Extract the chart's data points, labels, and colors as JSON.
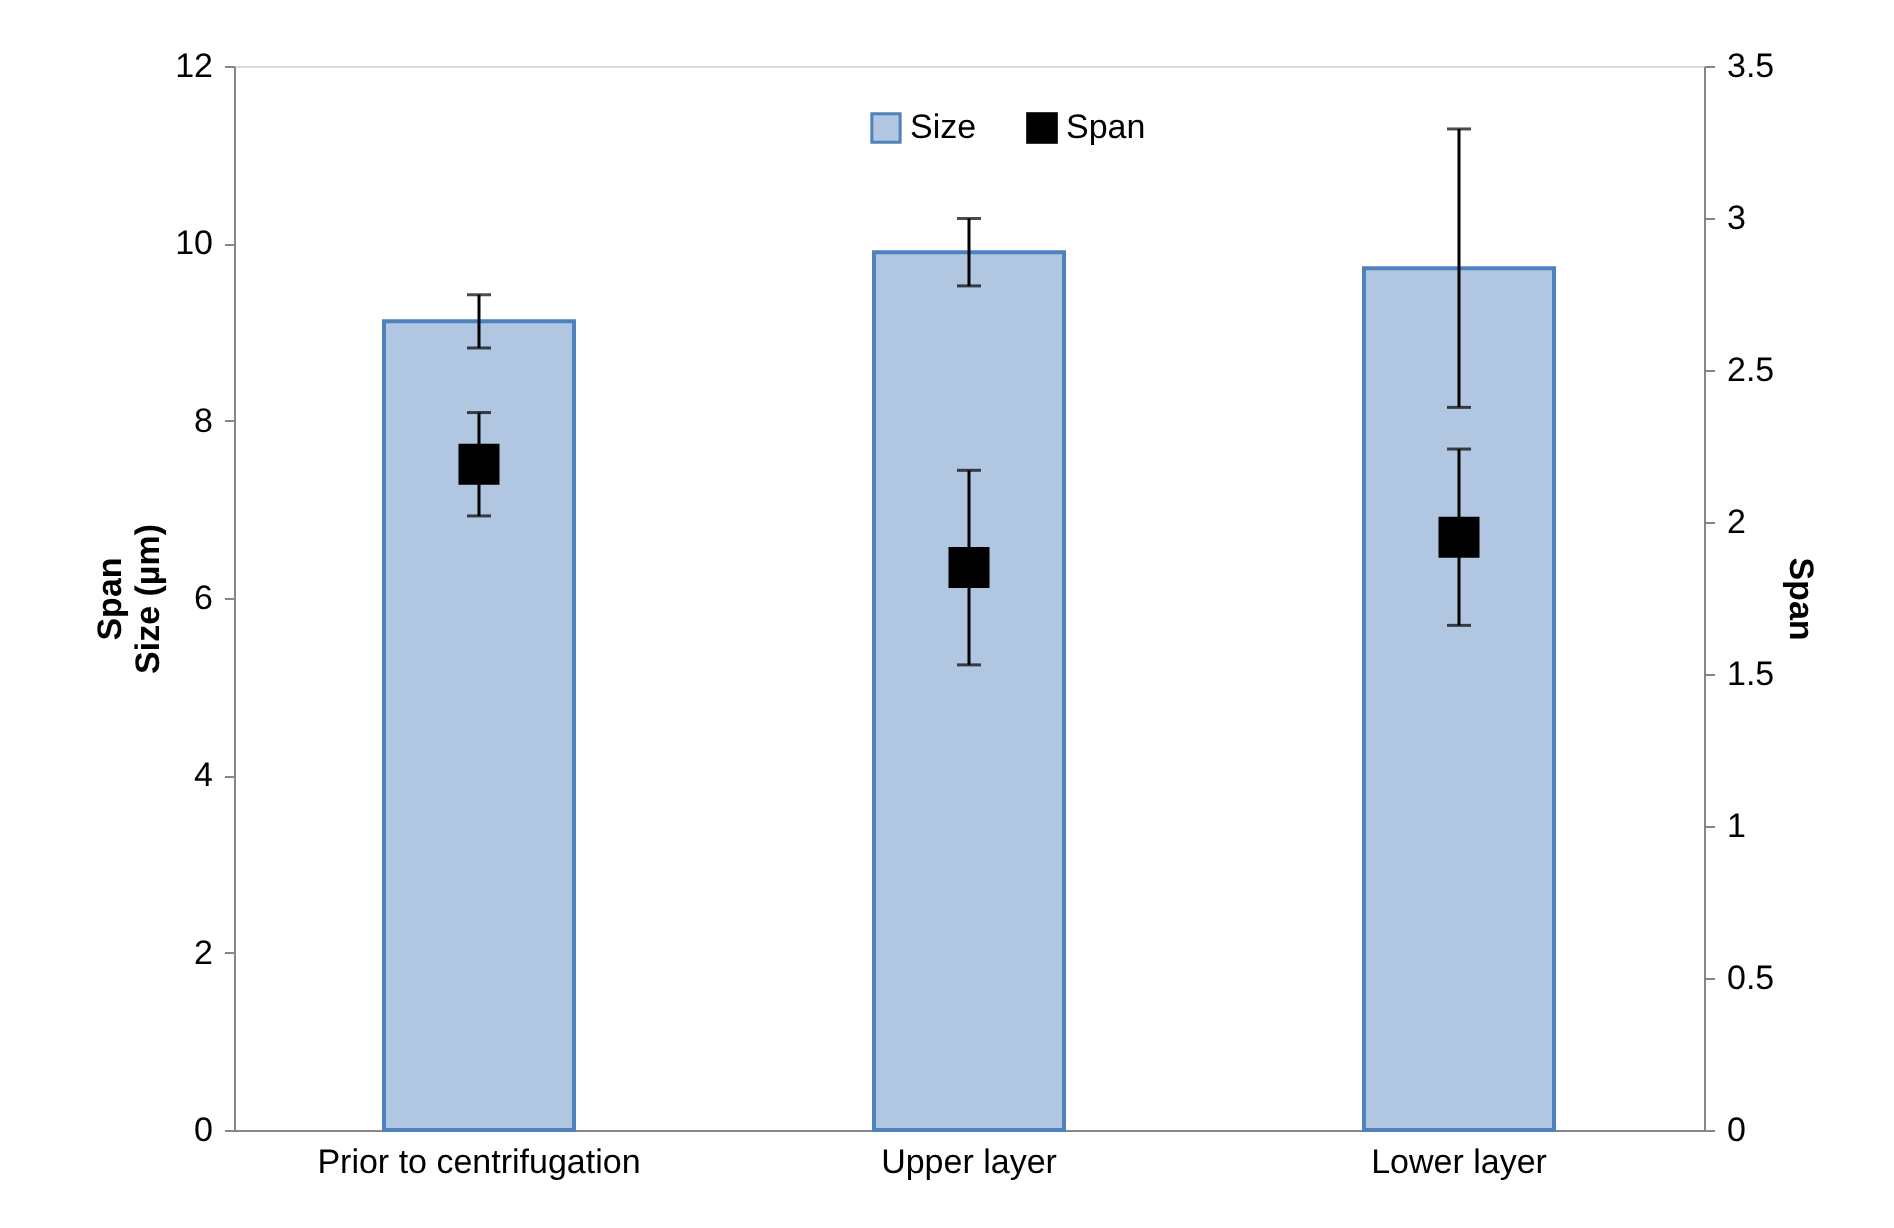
{
  "chart_data": {
    "type": "bar",
    "categories": [
      "Prior to centrifugation",
      "Upper layer",
      "Lower layer"
    ],
    "ylabel": "Span\nSize (µm)",
    "y2label": "Span",
    "ylim": [
      0,
      12
    ],
    "yticks": [
      0,
      2,
      4,
      6,
      8,
      10,
      12
    ],
    "y2lim": [
      0,
      3.5
    ],
    "y2ticks": [
      0,
      0.5,
      1,
      1.5,
      2,
      2.5,
      3,
      3.5
    ],
    "series": [
      {
        "name": "Size",
        "color": "#4f81bd",
        "values": [
          9.12,
          9.9,
          9.72
        ],
        "errors": [
          0.3,
          0.38,
          1.57
        ]
      },
      {
        "name": "Span",
        "type": "scatter",
        "axis": "y2",
        "color": "#000000",
        "values": [
          2.19,
          1.85,
          1.95
        ],
        "errors": [
          0.17,
          0.32,
          0.29
        ]
      }
    ],
    "marker": "square",
    "legend": "top",
    "grid": false
  }
}
